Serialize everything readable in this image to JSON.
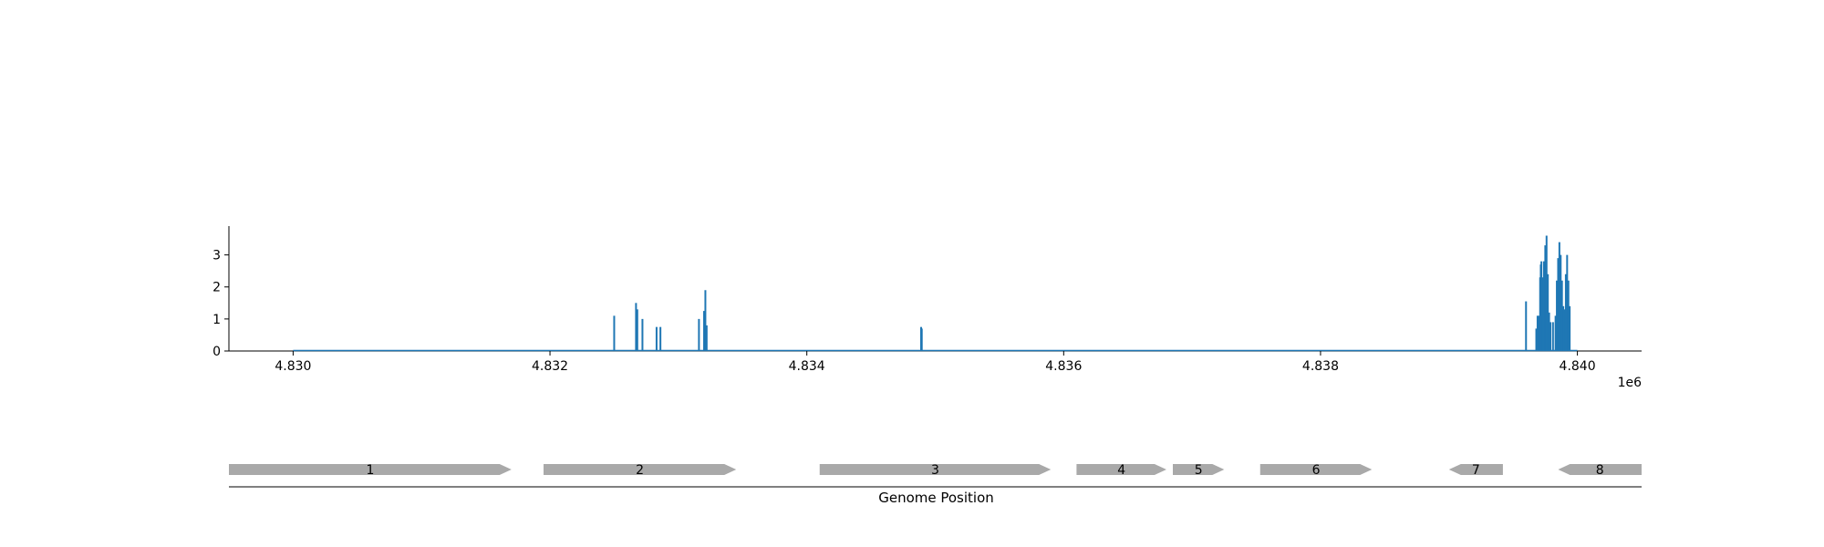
{
  "chart_data": [
    {
      "type": "bar",
      "xlim": [
        4829500,
        4840500
      ],
      "ylim": [
        0,
        3.9
      ],
      "x_ticks": [
        4830000,
        4832000,
        4834000,
        4836000,
        4838000,
        4840000
      ],
      "x_tick_labels": [
        "4.830",
        "4.832",
        "4.834",
        "4.836",
        "4.838",
        "4.840"
      ],
      "x_offset_label": "1e6",
      "y_ticks": [
        0,
        1,
        2,
        3
      ],
      "y_tick_labels": [
        "0",
        "1",
        "2",
        "3"
      ],
      "series_color": "#1f77b4",
      "baseline": [
        4830000,
        4840000
      ],
      "x": [
        4832500,
        4832670,
        4832680,
        4832720,
        4832830,
        4832860,
        4833160,
        4833200,
        4833210,
        4833220,
        4834890,
        4834895,
        4839600,
        4839680,
        4839690,
        4839700,
        4839710,
        4839715,
        4839720,
        4839730,
        4839740,
        4839750,
        4839760,
        4839770,
        4839780,
        4839790,
        4839810,
        4839830,
        4839840,
        4839850,
        4839860,
        4839870,
        4839880,
        4839890,
        4839900,
        4839910,
        4839920,
        4839930,
        4839940
      ],
      "values": [
        1.1,
        1.5,
        1.3,
        1.0,
        0.75,
        0.75,
        1.0,
        1.25,
        1.9,
        0.8,
        0.75,
        0.7,
        1.55,
        0.7,
        1.1,
        1.1,
        2.3,
        2.7,
        2.8,
        2.3,
        2.8,
        3.3,
        3.6,
        2.4,
        1.2,
        0.9,
        0.9,
        1.1,
        2.2,
        2.9,
        3.4,
        3.0,
        2.2,
        1.4,
        1.3,
        2.4,
        3.0,
        2.2,
        1.4
      ]
    },
    {
      "type": "gene-map",
      "xlabel": "Genome Position",
      "color": "#a9a9a9",
      "genes": [
        {
          "label": "1",
          "start": 4829500,
          "end": 4831700,
          "strand": "+"
        },
        {
          "label": "2",
          "start": 4831950,
          "end": 4833450,
          "strand": "+"
        },
        {
          "label": "3",
          "start": 4834100,
          "end": 4835900,
          "strand": "+"
        },
        {
          "label": "4",
          "start": 4836100,
          "end": 4836800,
          "strand": "+"
        },
        {
          "label": "5",
          "start": 4836850,
          "end": 4837250,
          "strand": "+"
        },
        {
          "label": "6",
          "start": 4837530,
          "end": 4838400,
          "strand": "+"
        },
        {
          "label": "7",
          "start": 4839000,
          "end": 4839420,
          "strand": "-"
        },
        {
          "label": "8",
          "start": 4839850,
          "end": 4840500,
          "strand": "-"
        }
      ]
    }
  ]
}
